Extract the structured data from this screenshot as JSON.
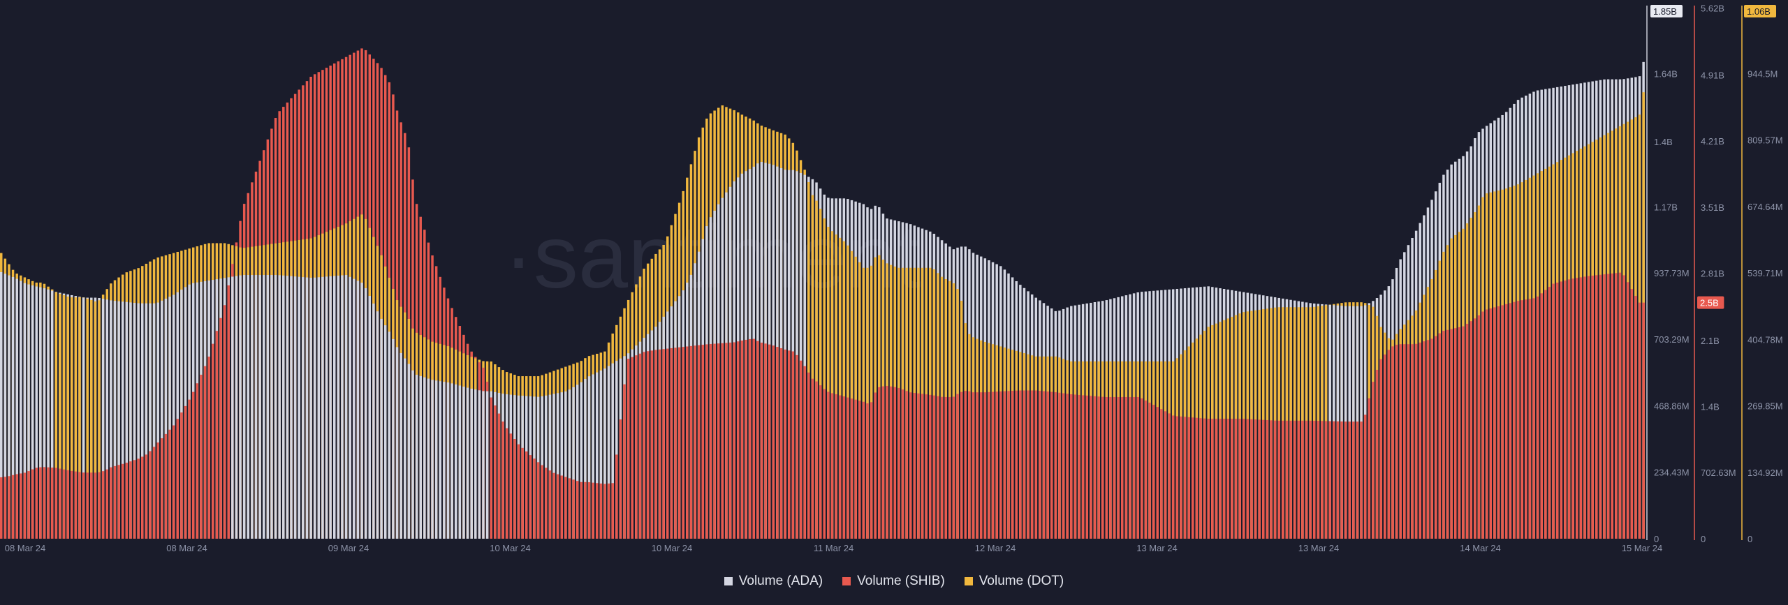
{
  "chart_data": {
    "type": "bar",
    "watermark": "santiment",
    "x_tick_labels": [
      "08 Mar 24",
      "08 Mar 24",
      "09 Mar 24",
      "10 Mar 24",
      "10 Mar 24",
      "11 Mar 24",
      "12 Mar 24",
      "13 Mar 24",
      "13 Mar 24",
      "14 Mar 24",
      "15 Mar 24"
    ],
    "axes": [
      {
        "id": "ada",
        "color": "#c9ccd8",
        "ylim": [
          0,
          1.875
        ],
        "ticks": [
          0,
          0.23443,
          0.46886,
          0.70329,
          0.93773,
          1.17,
          1.4,
          1.64
        ],
        "tick_labels": [
          "0",
          "234.43M",
          "468.86M",
          "703.29M",
          "937.73M",
          "1.17B",
          "1.4B",
          "1.64B"
        ],
        "current_label": "1.85B"
      },
      {
        "id": "shib",
        "color": "#e8594f",
        "ylim": [
          0,
          5.63
        ],
        "ticks": [
          0,
          0.70263,
          1.4,
          2.1,
          2.81,
          3.51,
          4.21,
          4.91,
          5.62
        ],
        "tick_labels": [
          "0",
          "702.63M",
          "1.4B",
          "2.1B",
          "2.81B",
          "3.51B",
          "4.21B",
          "4.91B",
          "5.62B"
        ],
        "current_label": "2.5B"
      },
      {
        "id": "dot",
        "color": "#f1b83e",
        "ylim": [
          0,
          1.0795
        ],
        "ticks": [
          0,
          0.13492,
          0.26985,
          0.40478,
          0.53971,
          0.67464,
          0.80957,
          0.9445
        ],
        "tick_labels": [
          "0",
          "134.92M",
          "269.85M",
          "404.78M",
          "539.71M",
          "674.64M",
          "809.57M",
          "944.5M"
        ],
        "current_label": "1.06B"
      }
    ],
    "series": [
      {
        "name": "Volume (ADA)",
        "axis": "ada",
        "color": "#d4d6e2",
        "x": [
          0,
          4,
          8,
          14,
          20,
          24,
          32,
          40,
          48,
          56,
          60,
          64,
          72,
          80,
          85,
          90,
          100,
          110,
          120,
          130,
          140,
          160,
          180,
          200,
          210,
          220,
          226,
          230,
          236,
          238,
          240,
          250,
          260,
          272,
          280,
          284,
          292,
          300,
          312,
          320,
          328,
          336,
          340,
          350,
          355,
          363,
          373,
          380,
          385,
          390,
          395,
          400,
          405,
          410,
          418,
          425,
          430,
          436,
          440,
          447,
          455,
          460,
          467,
          470,
          474,
          476,
          480,
          490,
          500,
          504,
          508,
          513,
          520,
          527,
          540,
          546,
          552,
          556,
          560,
          563,
          570,
          580,
          590,
          600,
          612,
          620,
          640,
          660,
          680,
          700,
          720,
          740,
          760,
          780,
          790,
          796,
          800,
          806,
          810,
          820,
          830,
          836,
          841,
          848,
          852,
          856,
          860,
          872,
          880,
          890,
          900,
          910,
          920,
          930,
          940,
          950,
          960
        ],
        "y": [
          0.94,
          0.93,
          0.92,
          0.9,
          0.89,
          0.885,
          0.87,
          0.86,
          0.85,
          0.85,
          0.845,
          0.84,
          0.835,
          0.83,
          0.83,
          0.83,
          0.86,
          0.9,
          0.91,
          0.92,
          0.93,
          0.93,
          0.92,
          0.93,
          0.9,
          0.78,
          0.72,
          0.67,
          0.62,
          0.6,
          0.58,
          0.56,
          0.55,
          0.53,
          0.52,
          0.52,
          0.51,
          0.505,
          0.5,
          0.51,
          0.52,
          0.55,
          0.57,
          0.6,
          0.62,
          0.65,
          0.71,
          0.75,
          0.79,
          0.83,
          0.87,
          0.93,
          1.02,
          1.12,
          1.2,
          1.26,
          1.29,
          1.31,
          1.33,
          1.32,
          1.3,
          1.3,
          1.28,
          1.27,
          1.25,
          1.22,
          1.2,
          1.2,
          1.18,
          1.16,
          1.18,
          1.13,
          1.12,
          1.11,
          1.08,
          1.05,
          1.02,
          1.03,
          1.03,
          1.01,
          0.99,
          0.96,
          0.9,
          0.85,
          0.8,
          0.82,
          0.84,
          0.87,
          0.88,
          0.89,
          0.87,
          0.85,
          0.83,
          0.82,
          0.82,
          0.84,
          0.86,
          0.9,
          0.97,
          1.08,
          1.2,
          1.28,
          1.32,
          1.35,
          1.38,
          1.43,
          1.45,
          1.5,
          1.55,
          1.58,
          1.59,
          1.6,
          1.61,
          1.62,
          1.62,
          1.63,
          1.85
        ]
      },
      {
        "name": "Volume (SHIB)",
        "axis": "shib",
        "color": "#e8594f",
        "x": [
          0,
          4,
          8,
          14,
          20,
          24,
          32,
          40,
          48,
          56,
          60,
          64,
          72,
          80,
          85,
          90,
          100,
          110,
          120,
          130,
          140,
          160,
          180,
          200,
          210,
          220,
          226,
          230,
          236,
          238,
          240,
          250,
          260,
          272,
          280,
          284,
          292,
          300,
          312,
          320,
          328,
          336,
          340,
          350,
          355,
          363,
          373,
          380,
          385,
          390,
          395,
          400,
          405,
          410,
          418,
          425,
          430,
          436,
          440,
          447,
          455,
          460,
          467,
          470,
          474,
          476,
          480,
          490,
          500,
          504,
          508,
          513,
          520,
          527,
          540,
          546,
          552,
          556,
          560,
          563,
          570,
          580,
          590,
          600,
          612,
          620,
          640,
          660,
          680,
          700,
          720,
          740,
          760,
          780,
          790,
          796,
          800,
          806,
          810,
          820,
          830,
          836,
          841,
          848,
          852,
          856,
          860,
          872,
          880,
          890,
          900,
          910,
          920,
          930,
          940,
          950,
          960
        ],
        "y": [
          0.65,
          0.66,
          0.68,
          0.7,
          0.75,
          0.76,
          0.75,
          0.72,
          0.7,
          0.7,
          0.72,
          0.76,
          0.8,
          0.85,
          0.9,
          1.0,
          1.2,
          1.5,
          1.9,
          2.5,
          3.5,
          4.5,
          4.9,
          5.1,
          5.2,
          5.0,
          4.8,
          4.5,
          4.2,
          3.9,
          3.6,
          3.0,
          2.5,
          2.0,
          1.8,
          1.5,
          1.2,
          1.0,
          0.8,
          0.7,
          0.65,
          0.6,
          0.6,
          0.58,
          0.59,
          1.9,
          1.98,
          2.0,
          2.01,
          2.02,
          2.03,
          2.04,
          2.05,
          2.06,
          2.07,
          2.08,
          2.1,
          2.12,
          2.08,
          2.05,
          2.0,
          1.98,
          1.8,
          1.7,
          1.65,
          1.6,
          1.55,
          1.5,
          1.45,
          1.42,
          1.6,
          1.62,
          1.6,
          1.55,
          1.52,
          1.5,
          1.5,
          1.55,
          1.57,
          1.55,
          1.55,
          1.56,
          1.57,
          1.57,
          1.55,
          1.53,
          1.5,
          1.5,
          1.3,
          1.27,
          1.27,
          1.25,
          1.25,
          1.24,
          1.24,
          1.7,
          1.9,
          2.03,
          2.06,
          2.06,
          2.12,
          2.2,
          2.22,
          2.25,
          2.3,
          2.35,
          2.42,
          2.48,
          2.52,
          2.55,
          2.7,
          2.75,
          2.78,
          2.8,
          2.82,
          2.5,
          2.5
        ]
      },
      {
        "name": "Volume (DOT)",
        "axis": "dot",
        "color": "#f1b83e",
        "x": [
          0,
          4,
          8,
          14,
          20,
          24,
          32,
          40,
          48,
          56,
          60,
          64,
          72,
          80,
          85,
          90,
          100,
          110,
          120,
          130,
          140,
          160,
          180,
          200,
          210,
          220,
          226,
          230,
          236,
          238,
          240,
          250,
          260,
          272,
          280,
          284,
          292,
          300,
          312,
          320,
          328,
          336,
          340,
          350,
          355,
          363,
          373,
          380,
          385,
          390,
          395,
          400,
          405,
          410,
          418,
          425,
          430,
          436,
          440,
          447,
          455,
          460,
          467,
          470,
          474,
          476,
          480,
          490,
          500,
          504,
          508,
          513,
          520,
          527,
          540,
          546,
          552,
          556,
          560,
          563,
          570,
          580,
          590,
          600,
          612,
          620,
          640,
          660,
          680,
          700,
          720,
          740,
          760,
          780,
          790,
          796,
          800,
          806,
          810,
          820,
          830,
          836,
          841,
          848,
          852,
          856,
          860,
          872,
          880,
          890,
          900,
          910,
          920,
          930,
          940,
          950,
          960
        ],
        "y": [
          0.58,
          0.56,
          0.54,
          0.53,
          0.52,
          0.52,
          0.5,
          0.49,
          0.49,
          0.48,
          0.5,
          0.52,
          0.54,
          0.55,
          0.56,
          0.57,
          0.58,
          0.59,
          0.6,
          0.6,
          0.59,
          0.6,
          0.61,
          0.64,
          0.66,
          0.58,
          0.52,
          0.48,
          0.45,
          0.43,
          0.42,
          0.4,
          0.39,
          0.37,
          0.36,
          0.36,
          0.34,
          0.33,
          0.33,
          0.34,
          0.35,
          0.36,
          0.37,
          0.38,
          0.42,
          0.48,
          0.55,
          0.58,
          0.6,
          0.65,
          0.7,
          0.76,
          0.82,
          0.86,
          0.88,
          0.87,
          0.86,
          0.85,
          0.84,
          0.83,
          0.82,
          0.8,
          0.74,
          0.7,
          0.68,
          0.66,
          0.63,
          0.6,
          0.55,
          0.55,
          0.58,
          0.56,
          0.55,
          0.55,
          0.55,
          0.53,
          0.52,
          0.5,
          0.42,
          0.41,
          0.4,
          0.39,
          0.38,
          0.37,
          0.37,
          0.36,
          0.36,
          0.36,
          0.36,
          0.43,
          0.46,
          0.47,
          0.47,
          0.48,
          0.48,
          0.47,
          0.43,
          0.4,
          0.42,
          0.46,
          0.53,
          0.58,
          0.61,
          0.63,
          0.65,
          0.67,
          0.7,
          0.71,
          0.72,
          0.74,
          0.76,
          0.78,
          0.8,
          0.82,
          0.84,
          0.86,
          1.06
        ]
      }
    ],
    "legend": [
      "Volume (ADA)",
      "Volume (SHIB)",
      "Volume (DOT)"
    ],
    "legend_position": "bottom-center",
    "grid": false
  }
}
